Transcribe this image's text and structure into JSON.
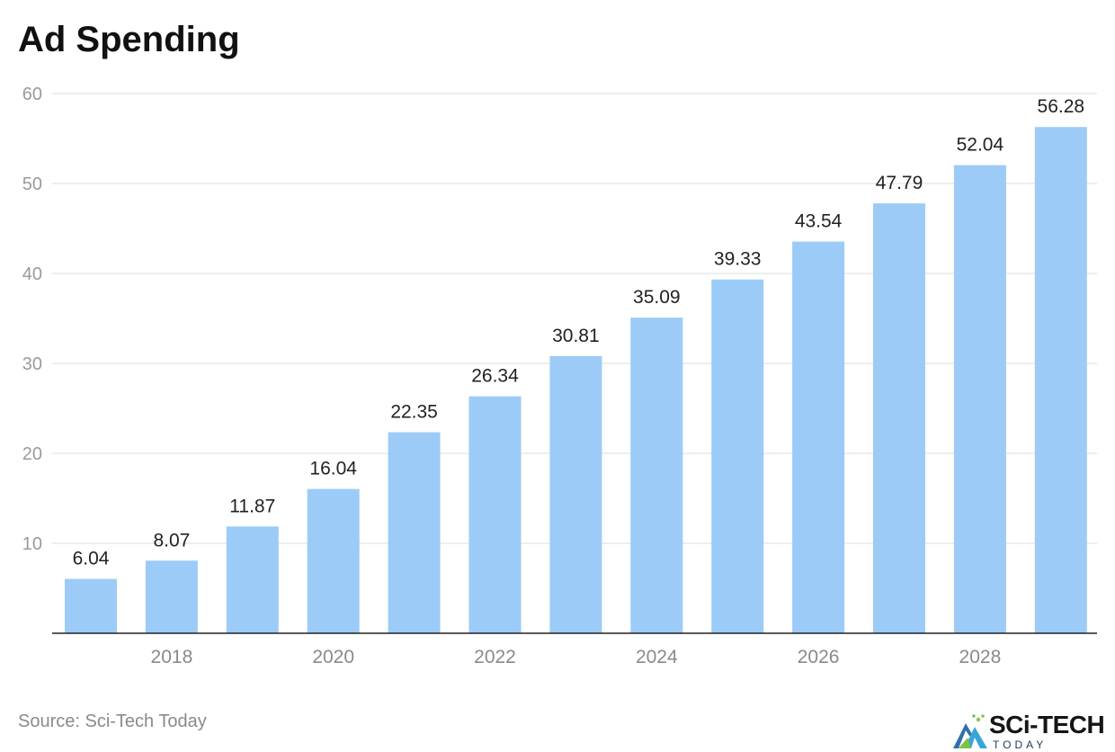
{
  "chart_data": {
    "type": "bar",
    "title": "Ad Spending",
    "categories": [
      "2017",
      "2018",
      "2019",
      "2020",
      "2021",
      "2022",
      "2023",
      "2024",
      "2025",
      "2026",
      "2027",
      "2028",
      "2029"
    ],
    "x_tick_labels": [
      "",
      "2018",
      "",
      "2020",
      "",
      "2022",
      "",
      "2024",
      "",
      "2026",
      "",
      "2028",
      ""
    ],
    "values": [
      6.04,
      8.07,
      11.87,
      16.04,
      22.35,
      26.34,
      30.81,
      35.09,
      39.33,
      43.54,
      47.79,
      52.04,
      56.28
    ],
    "data_labels": [
      "6.04",
      "8.07",
      "11.87",
      "16.04",
      "22.35",
      "26.34",
      "30.81",
      "35.09",
      "39.33",
      "43.54",
      "47.79",
      "52.04",
      "56.28"
    ],
    "y_ticks": [
      10,
      20,
      30,
      40,
      50,
      60
    ],
    "ylim": [
      0,
      60
    ],
    "xlabel": "",
    "ylabel": "",
    "grid": true,
    "bar_color": "#9ccbf7"
  },
  "footer": {
    "source": "Source: Sci-Tech Today",
    "logo_main": "SCi-TECH",
    "logo_sub": "TODAY"
  }
}
